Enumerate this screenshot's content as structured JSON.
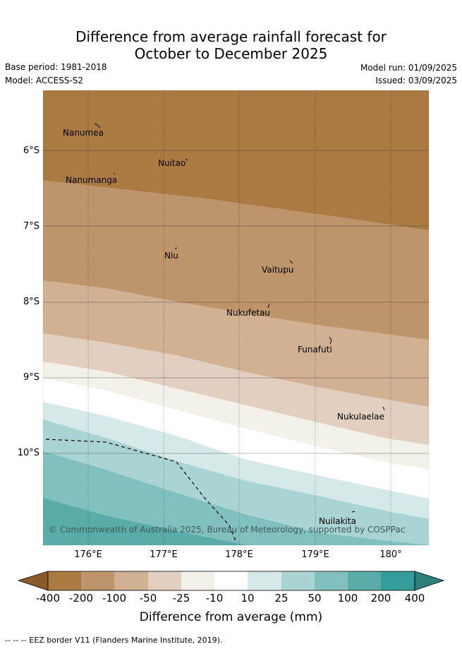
{
  "title": {
    "line1": "Difference from average rainfall forecast for",
    "line2": "October to December 2025"
  },
  "meta": {
    "base_period": "Base period: 1981-2018",
    "model": "Model: ACCESS-S2",
    "model_run": "Model run: 01/09/2025",
    "issued": "Issued: 03/09/2025"
  },
  "map": {
    "lat_labels": [
      "6°S",
      "7°S",
      "8°S",
      "9°S",
      "10°S"
    ],
    "lon_labels": [
      "176°E",
      "177°E",
      "178°E",
      "179°E",
      "180°"
    ],
    "places": [
      "Nanumea",
      "Nuitao",
      "Nanumanga",
      "Niu",
      "Vaitupu",
      "Nukufetau",
      "Funafuti",
      "Nukulaelae",
      "Nuilakita"
    ],
    "copyright": "© Commonwealth of Australia 2025, Bureau of Meteorology, supported by COSPPac"
  },
  "colorbar": {
    "ticks": [
      "-400",
      "-200",
      "-100",
      "-50",
      "-25",
      "-10",
      "10",
      "25",
      "50",
      "100",
      "200",
      "400"
    ],
    "colors": [
      "#8b5a2b",
      "#ab7a43",
      "#be946a",
      "#d1b093",
      "#e2cfbf",
      "#f3efe9",
      "#ffffff",
      "#d5e9e8",
      "#aad4d3",
      "#81c0bf",
      "#5aacab",
      "#349d9b",
      "#2d7e7d"
    ],
    "label": "Difference from average (mm)"
  },
  "legend": {
    "eez": "-- -- -- EEZ border V11 (Flanders Marine Institute, 2019)."
  }
}
